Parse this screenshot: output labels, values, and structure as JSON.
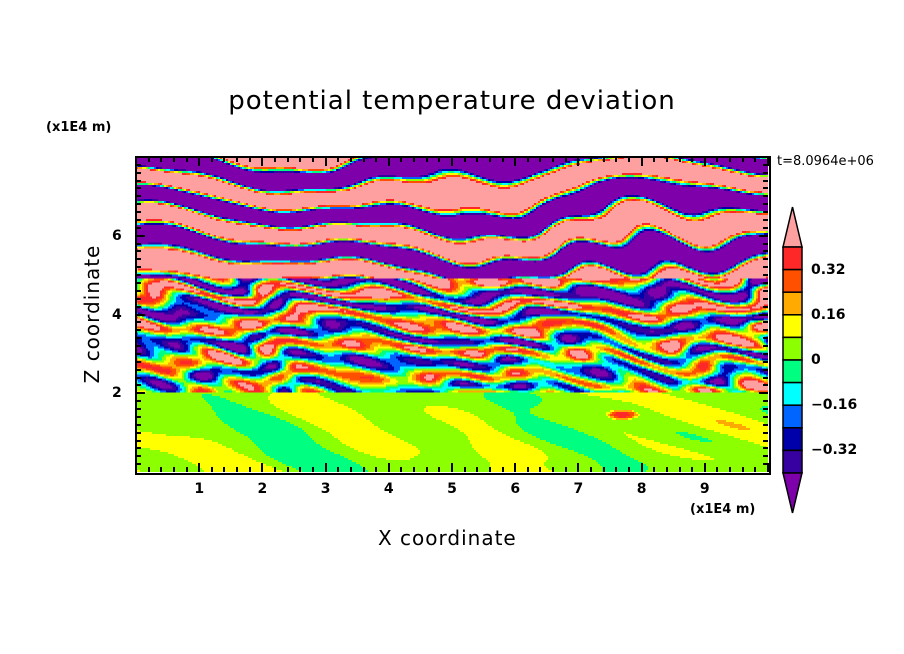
{
  "chart_data": {
    "type": "heatmap",
    "title": "potential temperature deviation",
    "xlabel": "X coordinate",
    "ylabel": "Z coordinate",
    "x_unit": "(x1E4 m)",
    "y_unit": "(x1E4 m)",
    "time_label": "t=8.0964e+06",
    "xlim": [
      0,
      10
    ],
    "ylim": [
      0,
      8
    ],
    "x_ticks": [
      "1",
      "2",
      "3",
      "4",
      "5",
      "6",
      "7",
      "8",
      "9"
    ],
    "y_ticks": [
      "2",
      "4",
      "6"
    ],
    "grid": false,
    "legend_placement": "right",
    "contour_levels": [
      -0.4,
      -0.32,
      -0.24,
      -0.16,
      -0.08,
      0,
      0.08,
      0.16,
      0.24,
      0.32,
      0.4
    ],
    "colorbar_labels": [
      {
        "value": 0.32,
        "text": "0.32"
      },
      {
        "value": 0.16,
        "text": "0.16"
      },
      {
        "value": 0,
        "text": "0"
      },
      {
        "value": -0.16,
        "text": "−0.16"
      },
      {
        "value": -0.32,
        "text": "−0.32"
      }
    ],
    "colors": [
      "#7d00aa",
      "#3700a0",
      "#0000aa",
      "#0064ff",
      "#00ffff",
      "#00ff80",
      "#8cff00",
      "#ffff00",
      "#ffaa00",
      "#ff5000",
      "#ff2828",
      "#ffa0a0"
    ]
  }
}
